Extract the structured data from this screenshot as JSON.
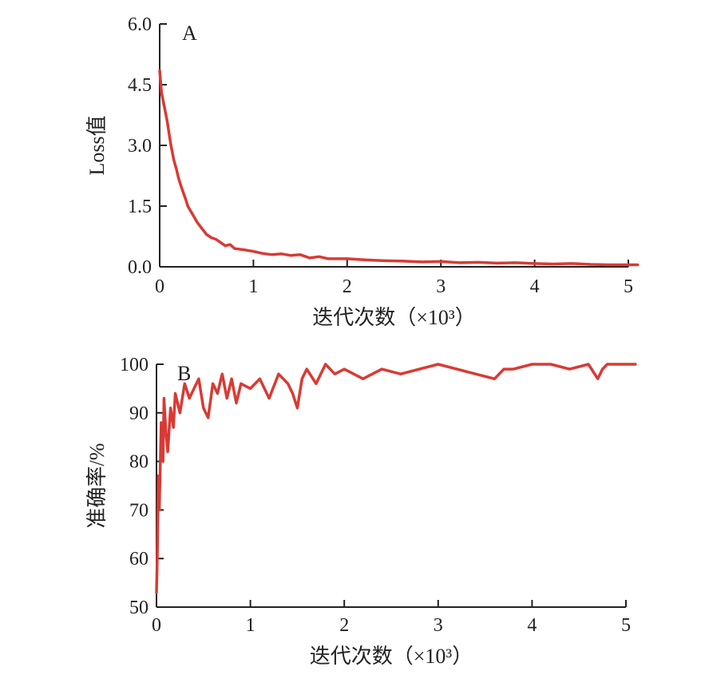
{
  "chart_data": [
    {
      "type": "line",
      "panel_label": "A",
      "xlabel": "迭代次数（×10³）",
      "ylabel": "Loss值",
      "xlim": [
        0,
        5
      ],
      "ylim": [
        0,
        6
      ],
      "x_ticks": [
        "0",
        "1",
        "2",
        "3",
        "4",
        "5"
      ],
      "y_ticks": [
        "0.0",
        "1.5",
        "3.0",
        "4.5",
        "6.0"
      ],
      "line_color": "#d93a34",
      "grid": false,
      "series": [
        {
          "x": [
            0,
            0.02,
            0.05,
            0.08,
            0.1,
            0.12,
            0.15,
            0.18,
            0.2,
            0.22,
            0.25,
            0.28,
            0.3,
            0.35,
            0.4,
            0.45,
            0.5,
            0.55,
            0.6,
            0.65,
            0.7,
            0.75,
            0.8,
            0.9,
            1.0,
            1.1,
            1.2,
            1.3,
            1.4,
            1.5,
            1.6,
            1.7,
            1.8,
            2.0,
            2.2,
            2.4,
            2.6,
            2.8,
            3.0,
            3.2,
            3.4,
            3.6,
            3.8,
            4.0,
            4.2,
            4.4,
            4.6,
            4.8,
            5.0,
            5.1
          ],
          "y": [
            4.85,
            4.3,
            3.95,
            3.6,
            3.3,
            3.0,
            2.65,
            2.4,
            2.2,
            2.05,
            1.85,
            1.65,
            1.5,
            1.3,
            1.1,
            0.95,
            0.8,
            0.72,
            0.68,
            0.6,
            0.52,
            0.55,
            0.45,
            0.42,
            0.38,
            0.33,
            0.3,
            0.32,
            0.28,
            0.3,
            0.22,
            0.25,
            0.2,
            0.2,
            0.17,
            0.15,
            0.14,
            0.12,
            0.13,
            0.1,
            0.11,
            0.09,
            0.1,
            0.08,
            0.07,
            0.08,
            0.06,
            0.05,
            0.05,
            0.05
          ]
        }
      ]
    },
    {
      "type": "line",
      "panel_label": "B",
      "xlabel": "迭代次数（×10³）",
      "ylabel": "准确率/%",
      "xlim": [
        0,
        5
      ],
      "ylim": [
        50,
        100
      ],
      "x_ticks": [
        "0",
        "1",
        "2",
        "3",
        "4",
        "5"
      ],
      "y_ticks": [
        "50",
        "60",
        "70",
        "80",
        "90",
        "100"
      ],
      "line_color": "#d93a34",
      "grid": false,
      "series": [
        {
          "x": [
            0,
            0.01,
            0.02,
            0.03,
            0.05,
            0.07,
            0.08,
            0.1,
            0.12,
            0.15,
            0.18,
            0.2,
            0.25,
            0.3,
            0.35,
            0.4,
            0.45,
            0.5,
            0.55,
            0.6,
            0.65,
            0.7,
            0.75,
            0.8,
            0.85,
            0.9,
            1.0,
            1.1,
            1.2,
            1.3,
            1.4,
            1.45,
            1.5,
            1.55,
            1.6,
            1.7,
            1.8,
            1.9,
            2.0,
            2.2,
            2.4,
            2.6,
            2.8,
            3.0,
            3.2,
            3.4,
            3.6,
            3.7,
            3.8,
            4.0,
            4.2,
            4.4,
            4.6,
            4.7,
            4.75,
            4.8,
            5.0,
            5.1
          ],
          "y": [
            53,
            62,
            77,
            70,
            88,
            80,
            93,
            86,
            82,
            91,
            87,
            94,
            90,
            96,
            93,
            95,
            97,
            91,
            89,
            96,
            94,
            98,
            93,
            97,
            92,
            96,
            95,
            97,
            93,
            98,
            96,
            94,
            91,
            97,
            99,
            96,
            100,
            98,
            99,
            97,
            99,
            98,
            99,
            100,
            99,
            98,
            97,
            99,
            99,
            100,
            100,
            99,
            100,
            97,
            99,
            100,
            100,
            100
          ]
        }
      ]
    }
  ]
}
